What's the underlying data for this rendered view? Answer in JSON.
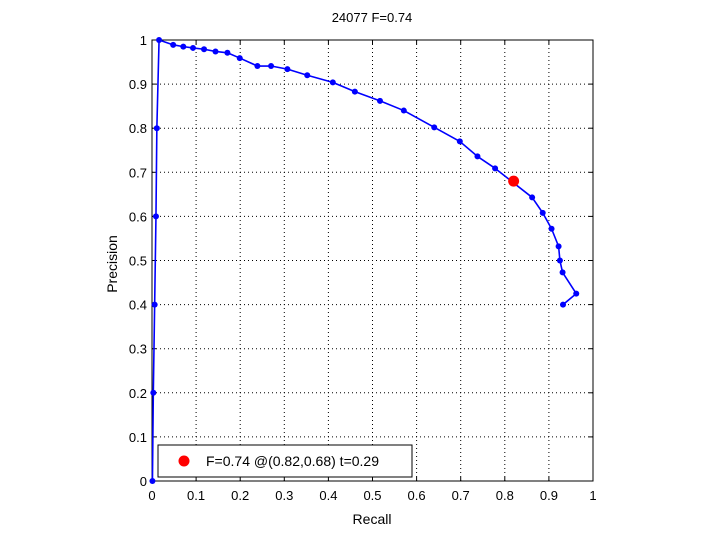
{
  "chart_data": {
    "type": "line",
    "title": "24077 F=0.74",
    "xlabel": "Recall",
    "ylabel": "Precision",
    "xlim": [
      0,
      1
    ],
    "ylim": [
      0,
      1
    ],
    "grid": true,
    "x_ticks": [
      "0",
      "0.1",
      "0.2",
      "0.3",
      "0.4",
      "0.5",
      "0.6",
      "0.7",
      "0.8",
      "0.9",
      "1"
    ],
    "y_ticks": [
      "0",
      "0.1",
      "0.2",
      "0.3",
      "0.4",
      "0.5",
      "0.6",
      "0.7",
      "0.8",
      "0.9",
      "1"
    ],
    "series": [
      {
        "color": "#0000ff",
        "points": [
          [
            0.932,
            0.4
          ],
          [
            0.962,
            0.425
          ],
          [
            0.931,
            0.473
          ],
          [
            0.925,
            0.5
          ],
          [
            0.922,
            0.532
          ],
          [
            0.906,
            0.572
          ],
          [
            0.886,
            0.608
          ],
          [
            0.862,
            0.643
          ],
          [
            0.778,
            0.709
          ],
          [
            0.738,
            0.736
          ],
          [
            0.698,
            0.77
          ],
          [
            0.64,
            0.802
          ],
          [
            0.571,
            0.84
          ],
          [
            0.517,
            0.862
          ],
          [
            0.46,
            0.883
          ],
          [
            0.41,
            0.904
          ],
          [
            0.352,
            0.92
          ],
          [
            0.307,
            0.934
          ],
          [
            0.27,
            0.941
          ],
          [
            0.239,
            0.941
          ],
          [
            0.199,
            0.959
          ],
          [
            0.171,
            0.971
          ],
          [
            0.144,
            0.974
          ],
          [
            0.118,
            0.979
          ],
          [
            0.093,
            0.982
          ],
          [
            0.071,
            0.985
          ],
          [
            0.048,
            0.989
          ],
          [
            0.016,
            1.0
          ],
          [
            0.011,
            0.8
          ],
          [
            0.009,
            0.6
          ],
          [
            0.006,
            0.4
          ],
          [
            0.003,
            0.2
          ],
          [
            0.001,
            0.0
          ]
        ]
      }
    ],
    "highlight": {
      "recall": 0.82,
      "precision": 0.68,
      "color": "#ff0000"
    },
    "legend": {
      "position": "bottom-left",
      "label": "F=0.74 @(0.82,0.68) t=0.29"
    }
  }
}
